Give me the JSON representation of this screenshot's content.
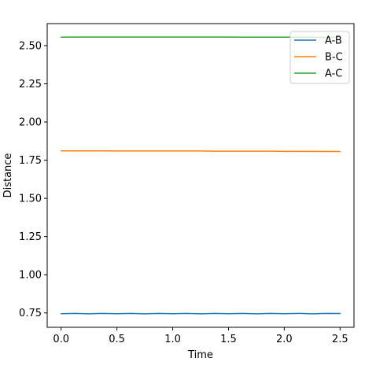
{
  "chart_data": {
    "type": "line",
    "title": "",
    "xlabel": "Time",
    "ylabel": "Distance",
    "xlim": [
      -0.125,
      2.625
    ],
    "ylim": [
      0.656,
      2.644
    ],
    "xticks": [
      0.0,
      0.5,
      1.0,
      1.5,
      2.0,
      2.5
    ],
    "xtick_labels": [
      "0.0",
      "0.5",
      "1.0",
      "1.5",
      "2.0",
      "2.5"
    ],
    "yticks": [
      0.75,
      1.0,
      1.25,
      1.5,
      1.75,
      2.0,
      2.25,
      2.5
    ],
    "ytick_labels": [
      "0.75",
      "1.00",
      "1.25",
      "1.50",
      "1.75",
      "2.00",
      "2.25",
      "2.50"
    ],
    "grid": false,
    "legend_position": "top-right",
    "x": [
      0.0,
      0.125,
      0.25,
      0.375,
      0.5,
      0.625,
      0.75,
      0.875,
      1.0,
      1.125,
      1.25,
      1.375,
      1.5,
      1.625,
      1.75,
      1.875,
      2.0,
      2.125,
      2.25,
      2.375,
      2.5
    ],
    "series": [
      {
        "name": "A-B",
        "color": "#1f77b4",
        "values": [
          0.745,
          0.747,
          0.744,
          0.747,
          0.745,
          0.747,
          0.744,
          0.747,
          0.745,
          0.747,
          0.744,
          0.747,
          0.745,
          0.747,
          0.744,
          0.747,
          0.745,
          0.747,
          0.744,
          0.747,
          0.746
        ]
      },
      {
        "name": "B-C",
        "color": "#ff7f0e",
        "values": [
          1.811,
          1.811,
          1.811,
          1.811,
          1.81,
          1.81,
          1.81,
          1.81,
          1.81,
          1.81,
          1.81,
          1.809,
          1.809,
          1.809,
          1.809,
          1.809,
          1.808,
          1.808,
          1.808,
          1.807,
          1.807
        ]
      },
      {
        "name": "A-C",
        "color": "#2ca02c",
        "values": [
          2.555,
          2.556,
          2.556,
          2.556,
          2.556,
          2.556,
          2.556,
          2.556,
          2.556,
          2.556,
          2.556,
          2.556,
          2.556,
          2.555,
          2.555,
          2.555,
          2.555,
          2.555,
          2.555,
          2.554,
          2.554
        ]
      }
    ]
  }
}
